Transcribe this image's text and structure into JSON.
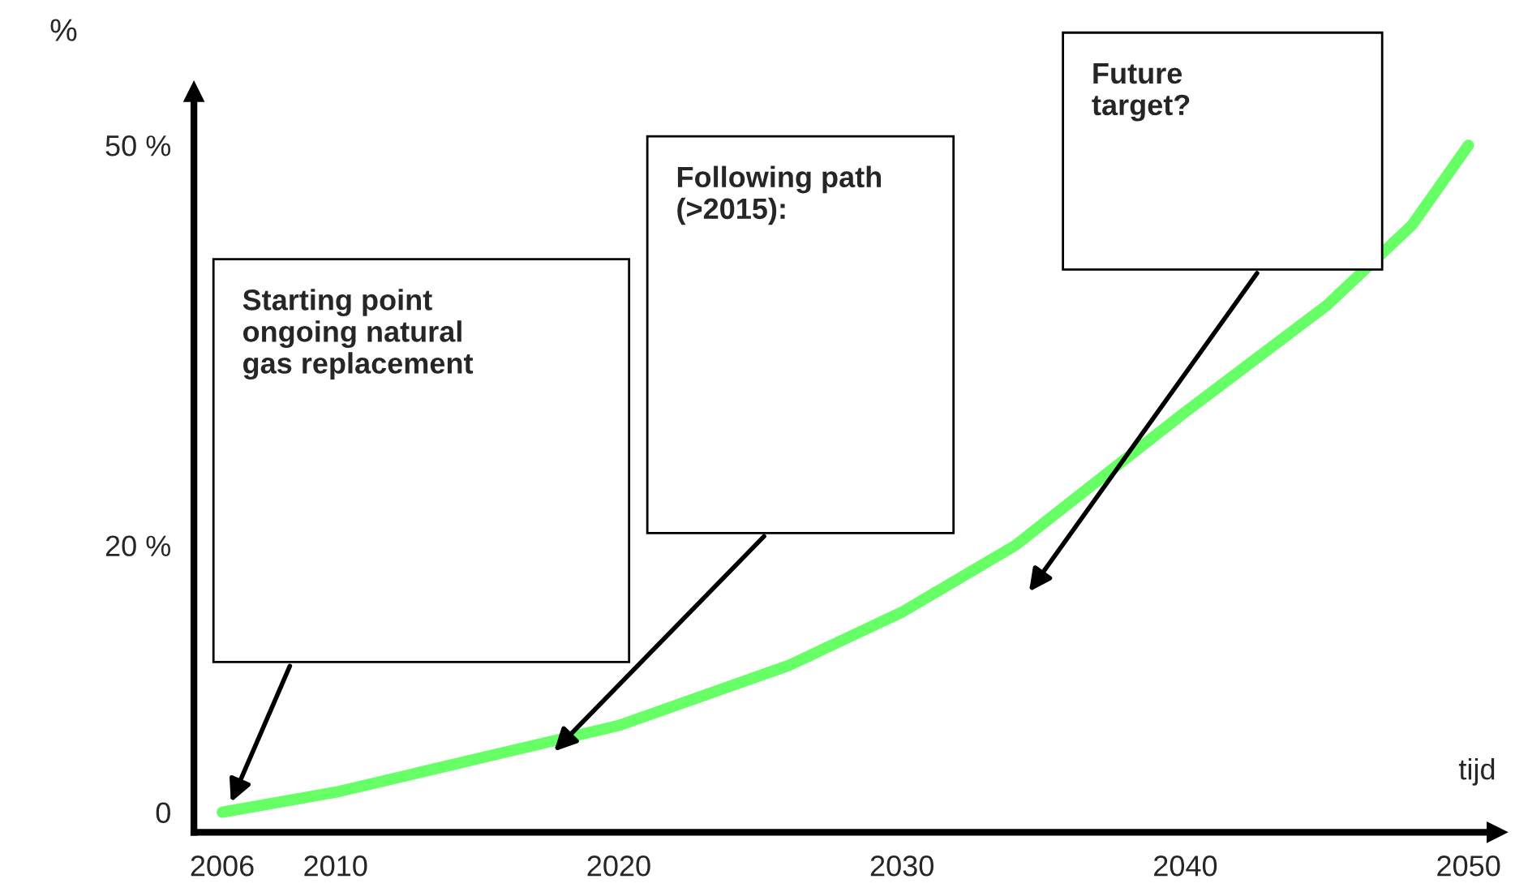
{
  "chart_data": {
    "type": "line",
    "xlabel": "tijd",
    "ylabel": "%",
    "x": [
      2006,
      2010,
      2016,
      2020,
      2026,
      2030,
      2032,
      2034,
      2040,
      2045,
      2048,
      2050
    ],
    "series": [
      {
        "color": "#66ff66",
        "values": [
          0,
          1.5,
          4.5,
          6.5,
          11,
          15,
          17.5,
          20,
          30,
          38,
          44,
          50
        ]
      }
    ],
    "xlim": [
      2005,
      2051
    ],
    "ylim": [
      -1.5,
      54
    ],
    "xticks": [
      2006,
      2010,
      2020,
      2030,
      2040,
      2050
    ],
    "yticks": [
      {
        "value": 0,
        "label": "0"
      },
      {
        "value": 20,
        "label": "20 %"
      },
      {
        "value": 50,
        "label": "50 %"
      }
    ],
    "annotations": [
      "Starting point\nongoing natural\ngas replacement",
      "Following path\n(>2015):",
      "Future\ntarget?"
    ],
    "grid": false,
    "legend": false,
    "marker": "none",
    "line_style": "solid"
  }
}
